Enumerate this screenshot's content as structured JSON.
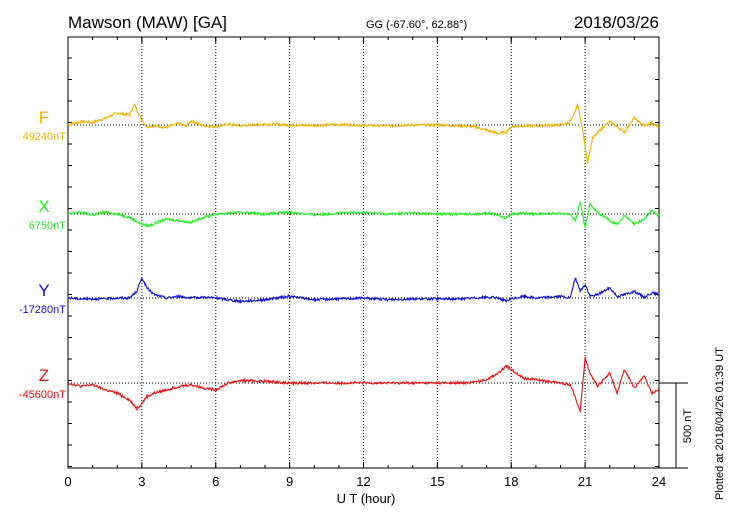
{
  "header": {
    "station": "Mawson (MAW)  [GA]",
    "coords": "GG (-67.60°,  62.88°)",
    "date": "2018/03/26"
  },
  "footer": {
    "plotted_note": "Plotted at 2018/04/26 01:39 UT"
  },
  "scale_bar": {
    "label": "500 nT",
    "value_nT": 500
  },
  "chart_data": {
    "type": "line",
    "title": "Mawson (MAW)  [GA]",
    "xlabel": "U T (hour)",
    "ylabel": "",
    "xlim": [
      0,
      24
    ],
    "xticks": [
      0,
      3,
      6,
      9,
      12,
      15,
      18,
      21,
      24
    ],
    "grid": true,
    "series": [
      {
        "name": "F",
        "baseline_label": "49240nT",
        "color": "#f5b000",
        "baseline_nT": 49240,
        "x": [
          0,
          0.5,
          1,
          1.5,
          2,
          2.5,
          2.7,
          3,
          3.2,
          3.5,
          4,
          4.5,
          4.8,
          5,
          5.5,
          6,
          6.5,
          7,
          8,
          9,
          10,
          11,
          12,
          13,
          14,
          15,
          16,
          16.5,
          17,
          17.5,
          17.8,
          18,
          18.5,
          19,
          20,
          20.3,
          20.5,
          20.7,
          20.9,
          21.1,
          21.3,
          21.6,
          22,
          22.3,
          22.6,
          23,
          23.4,
          23.7,
          24
        ],
        "y": [
          0,
          20,
          15,
          40,
          70,
          60,
          120,
          30,
          -10,
          -5,
          -15,
          10,
          -5,
          25,
          -5,
          -10,
          5,
          -5,
          5,
          0,
          -2,
          3,
          -2,
          -5,
          0,
          0,
          -5,
          -10,
          -30,
          -50,
          -40,
          -10,
          -5,
          -5,
          0,
          10,
          40,
          120,
          -30,
          -220,
          -80,
          -30,
          20,
          -10,
          -40,
          40,
          -5,
          10,
          -10
        ]
      },
      {
        "name": "X",
        "baseline_label": "6750nT",
        "color": "#22ee22",
        "baseline_nT": 6750,
        "x": [
          0,
          0.5,
          1,
          1.5,
          2,
          2.5,
          3,
          3.3,
          3.6,
          4,
          4.5,
          5,
          5.5,
          6,
          6.5,
          7,
          8,
          9,
          10,
          11,
          12,
          13,
          14,
          15,
          16,
          16.5,
          17,
          17.5,
          17.8,
          18,
          18.5,
          19,
          20,
          20.4,
          20.6,
          20.8,
          21,
          21.2,
          21.5,
          22,
          22.3,
          22.6,
          23,
          23.4,
          23.7,
          24
        ],
        "y": [
          0,
          10,
          -5,
          10,
          0,
          -20,
          -60,
          -70,
          -50,
          -30,
          -40,
          -50,
          -20,
          0,
          5,
          10,
          0,
          10,
          -5,
          5,
          10,
          0,
          5,
          0,
          0,
          0,
          5,
          -5,
          -25,
          0,
          5,
          0,
          5,
          0,
          -40,
          70,
          -80,
          60,
          10,
          -40,
          -60,
          -10,
          -60,
          -30,
          20,
          -10
        ]
      },
      {
        "name": "Y",
        "baseline_label": "-17280nT",
        "color": "#1010dd",
        "baseline_nT": -17280,
        "x": [
          0,
          0.5,
          1,
          1.5,
          2,
          2.5,
          2.8,
          3,
          3.2,
          3.5,
          4,
          4.5,
          5,
          5.5,
          6,
          6.5,
          7,
          8,
          9,
          10,
          11,
          12,
          13,
          14,
          15,
          16,
          17,
          17.5,
          17.8,
          18,
          18.5,
          19,
          20,
          20.4,
          20.6,
          20.8,
          21,
          21.2,
          21.5,
          22,
          22.3,
          22.6,
          23,
          23.4,
          23.7,
          24
        ],
        "y": [
          0,
          -5,
          -5,
          -5,
          0,
          0,
          40,
          120,
          60,
          20,
          0,
          10,
          0,
          5,
          0,
          -10,
          -20,
          -10,
          10,
          -10,
          -5,
          0,
          -10,
          -5,
          -5,
          -5,
          5,
          0,
          -20,
          -5,
          10,
          0,
          10,
          0,
          120,
          40,
          80,
          10,
          20,
          60,
          10,
          20,
          40,
          5,
          30,
          20
        ]
      },
      {
        "name": "Z",
        "baseline_label": "-45600nT",
        "color": "#ee1111",
        "baseline_nT": -45600,
        "x": [
          0,
          0.5,
          1,
          1.5,
          2,
          2.5,
          2.8,
          3,
          3.2,
          3.5,
          4,
          4.5,
          5,
          5.5,
          6,
          6.5,
          7,
          8,
          9,
          10,
          11,
          12,
          13,
          14,
          15,
          16,
          16.5,
          17,
          17.5,
          17.8,
          18,
          18.5,
          19,
          20,
          20.4,
          20.6,
          20.8,
          21,
          21.2,
          21.5,
          22,
          22.3,
          22.6,
          23,
          23.4,
          23.7,
          24
        ],
        "y": [
          0,
          -20,
          -10,
          -40,
          -60,
          -100,
          -150,
          -120,
          -80,
          -60,
          -40,
          -20,
          -10,
          -30,
          -40,
          0,
          15,
          10,
          0,
          0,
          0,
          0,
          0,
          0,
          0,
          0,
          5,
          20,
          60,
          100,
          80,
          30,
          20,
          0,
          -10,
          -80,
          -170,
          150,
          60,
          -20,
          60,
          -60,
          80,
          -30,
          40,
          -60,
          -40
        ]
      }
    ]
  }
}
